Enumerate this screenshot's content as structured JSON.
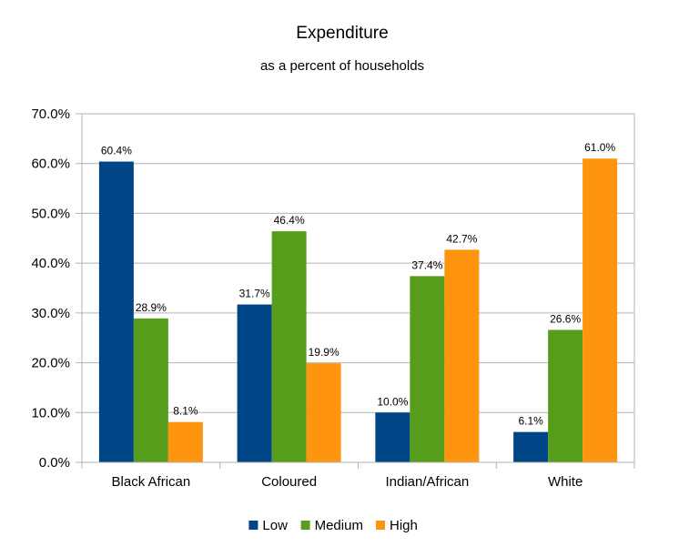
{
  "chart_data": {
    "type": "bar",
    "title": "Expenditure",
    "subtitle": "as a percent of households",
    "categories": [
      "Black African",
      "Coloured",
      "Indian/African",
      "White"
    ],
    "series": [
      {
        "name": "Low",
        "color": "#004586",
        "values": [
          60.4,
          31.7,
          10.0,
          6.1
        ],
        "labels": [
          "60.4%",
          "31.7%",
          "10.0%",
          "6.1%"
        ]
      },
      {
        "name": "Medium",
        "color": "#579d1c",
        "values": [
          28.9,
          46.4,
          37.4,
          26.6
        ],
        "labels": [
          "28.9%",
          "46.4%",
          "37.4%",
          "26.6%"
        ]
      },
      {
        "name": "High",
        "color": "#ff950e",
        "values": [
          8.1,
          19.9,
          42.7,
          61.0
        ],
        "labels": [
          "8.1%",
          "19.9%",
          "42.7%",
          "61.0%"
        ]
      }
    ],
    "ylim": [
      0,
      70
    ],
    "yticks": [
      0,
      10,
      20,
      30,
      40,
      50,
      60,
      70
    ],
    "ytick_labels": [
      "0.0%",
      "10.0%",
      "20.0%",
      "30.0%",
      "40.0%",
      "50.0%",
      "60.0%",
      "70.0%"
    ],
    "grid": true,
    "legend_position": "bottom"
  }
}
